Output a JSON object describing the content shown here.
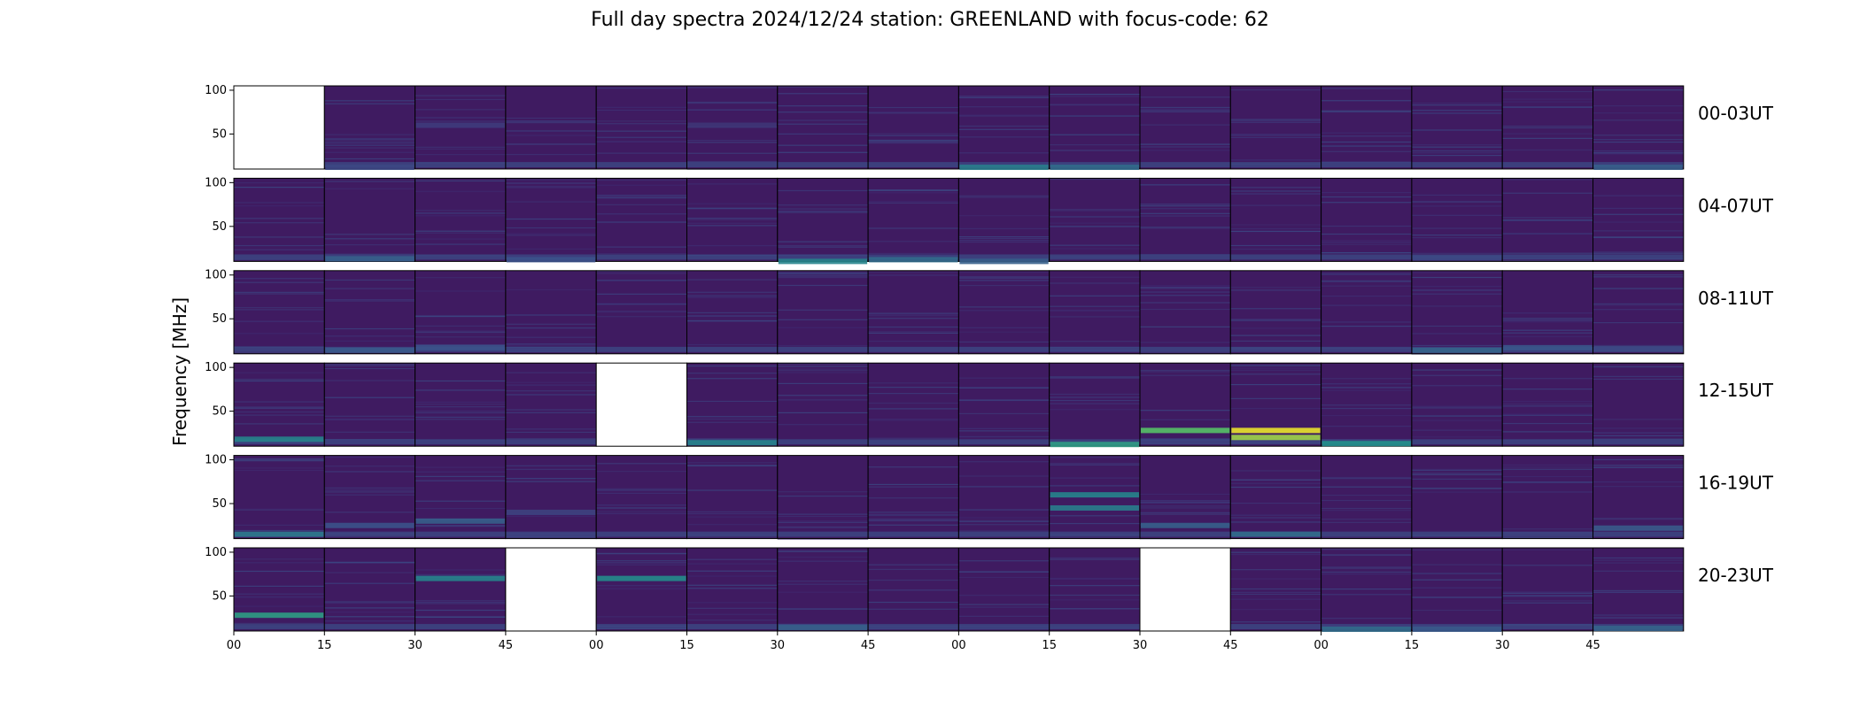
{
  "title": "Full day spectra 2024/12/24 station: GREENLAND with focus-code: 62",
  "chart_data": {
    "type": "heatmap",
    "title": "Full day spectra 2024/12/24 station: GREENLAND with focus-code: 62",
    "ylabel": "Frequency [MHz]",
    "ylim": [
      10,
      105
    ],
    "yticks": [
      50,
      100
    ],
    "xtick_labels": [
      "00",
      "15",
      "30",
      "45",
      "00",
      "15",
      "30",
      "45",
      "00",
      "15",
      "30",
      "45",
      "00",
      "15",
      "30",
      "45"
    ],
    "colormap": "viridis",
    "colors": {
      "background": "#3f1b61",
      "low": "#440154",
      "mid": "#21918c",
      "high": "#fde725",
      "missing": "#ffffff"
    },
    "rows": [
      {
        "label": "00-03UT",
        "missing": [
          0
        ],
        "bands": [
          [
            1,
            12,
            0.22
          ],
          [
            8,
            12,
            0.42
          ],
          [
            9,
            12,
            0.35
          ],
          [
            2,
            60,
            0.18
          ],
          [
            5,
            60,
            0.16
          ],
          [
            15,
            12,
            0.3
          ]
        ]
      },
      {
        "label": "04-07UT",
        "missing": [],
        "bands": [
          [
            6,
            10,
            0.45
          ],
          [
            7,
            12,
            0.35
          ],
          [
            8,
            10,
            0.3
          ],
          [
            3,
            12,
            0.25
          ],
          [
            13,
            14,
            0.22
          ],
          [
            1,
            13,
            0.3
          ]
        ]
      },
      {
        "label": "08-11UT",
        "missing": [],
        "bands": [
          [
            1,
            14,
            0.28
          ],
          [
            2,
            17,
            0.25
          ],
          [
            13,
            14,
            0.32
          ],
          [
            14,
            17,
            0.27
          ],
          [
            15,
            16,
            0.22
          ]
        ]
      },
      {
        "label": "12-15UT",
        "missing": [
          4
        ],
        "bands": [
          [
            0,
            18,
            0.45
          ],
          [
            5,
            14,
            0.45
          ],
          [
            9,
            12,
            0.55
          ],
          [
            10,
            28,
            0.72
          ],
          [
            11,
            28,
            0.97
          ],
          [
            11,
            20,
            0.85
          ],
          [
            12,
            13,
            0.5
          ]
        ]
      },
      {
        "label": "16-19UT",
        "missing": [],
        "bands": [
          [
            0,
            15,
            0.4
          ],
          [
            1,
            25,
            0.25
          ],
          [
            2,
            30,
            0.3
          ],
          [
            3,
            40,
            0.2
          ],
          [
            9,
            45,
            0.42
          ],
          [
            9,
            60,
            0.45
          ],
          [
            10,
            25,
            0.3
          ],
          [
            11,
            15,
            0.35
          ],
          [
            15,
            22,
            0.28
          ]
        ]
      },
      {
        "label": "20-23UT",
        "missing": [
          3,
          10
        ],
        "bands": [
          [
            0,
            28,
            0.55
          ],
          [
            2,
            70,
            0.45
          ],
          [
            4,
            70,
            0.48
          ],
          [
            6,
            14,
            0.3
          ],
          [
            12,
            12,
            0.35
          ],
          [
            13,
            12,
            0.28
          ],
          [
            15,
            13,
            0.32
          ]
        ]
      }
    ]
  }
}
